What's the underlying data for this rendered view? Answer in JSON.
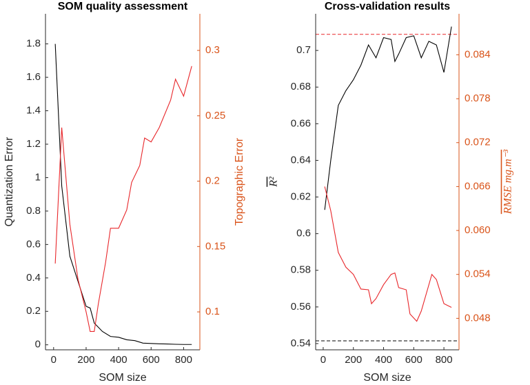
{
  "chart_data": [
    {
      "type": "line",
      "title": "SOM quality assessment",
      "xlabel": "SOM size",
      "ylabel": "Quantization Error",
      "y2label": "Topographic Error",
      "xlim": [
        -50,
        900
      ],
      "xticks": [
        0,
        200,
        400,
        600,
        800
      ],
      "ylim": [
        -0.03,
        1.98
      ],
      "yticks": [
        0,
        0.2,
        0.4,
        0.6,
        0.8,
        1,
        1.2,
        1.4,
        1.6,
        1.8
      ],
      "y2lim": [
        0.071,
        0.328
      ],
      "y2ticks": [
        0.1,
        0.15,
        0.2,
        0.25,
        0.3
      ],
      "axis_color": "#262626",
      "axis2_color": "#d95319",
      "series": [
        {
          "color": "#000000",
          "x": [
            10,
            50,
            100,
            150,
            200,
            225,
            250,
            300,
            350,
            400,
            450,
            500,
            550,
            600,
            650,
            700,
            750,
            800,
            850
          ],
          "values": [
            1.8,
            0.95,
            0.53,
            0.38,
            0.23,
            0.22,
            0.13,
            0.08,
            0.05,
            0.045,
            0.03,
            0.025,
            0.01,
            0.008,
            0.006,
            0.005,
            0.003,
            0.002,
            0.002
          ]
        },
        {
          "color": "#e8262a",
          "axis": "y2",
          "x": [
            10,
            50,
            100,
            150,
            200,
            225,
            250,
            275,
            320,
            350,
            400,
            450,
            480,
            530,
            560,
            600,
            650,
            720,
            750,
            800,
            850
          ],
          "values": [
            0.137,
            0.241,
            0.167,
            0.125,
            0.1,
            0.085,
            0.085,
            0.106,
            0.138,
            0.164,
            0.164,
            0.178,
            0.199,
            0.212,
            0.233,
            0.23,
            0.241,
            0.262,
            0.278,
            0.265,
            0.288
          ]
        }
      ],
      "hlines": []
    },
    {
      "type": "line",
      "title": "Cross-validation results",
      "xlabel": "SOM size",
      "ylabel": "R²",
      "y2label": "RMSE mg.m⁻³",
      "xlim": [
        -50,
        900
      ],
      "xticks": [
        0,
        200,
        400,
        600,
        800
      ],
      "ylim": [
        0.5366,
        0.72
      ],
      "yticks": [
        0.54,
        0.56,
        0.58,
        0.6,
        0.62,
        0.64,
        0.66,
        0.68,
        0.7
      ],
      "y2lim": [
        0.0437,
        0.0896
      ],
      "y2ticks": [
        0.048,
        0.054,
        {
          "value": 0.06,
          "label": "0.060"
        },
        0.066,
        0.072,
        0.078,
        0.084
      ],
      "axis_color": "#262626",
      "axis2_color": "#d95319",
      "series": [
        {
          "color": "#000000",
          "x": [
            10,
            50,
            100,
            150,
            200,
            250,
            300,
            350,
            400,
            450,
            475,
            500,
            550,
            600,
            650,
            700,
            750,
            800,
            850
          ],
          "values": [
            0.613,
            0.64,
            0.67,
            0.678,
            0.684,
            0.692,
            0.703,
            0.696,
            0.707,
            0.706,
            0.694,
            0.698,
            0.707,
            0.708,
            0.696,
            0.705,
            0.703,
            0.688,
            0.713
          ]
        },
        {
          "color": "#e8262a",
          "axis": "y2",
          "x": [
            10,
            50,
            100,
            150,
            200,
            250,
            300,
            320,
            350,
            400,
            450,
            475,
            500,
            550,
            575,
            620,
            650,
            720,
            750,
            800,
            850
          ],
          "values": [
            0.066,
            0.0627,
            0.057,
            0.055,
            0.054,
            0.052,
            0.0519,
            0.05,
            0.0507,
            0.0526,
            0.054,
            0.0542,
            0.0522,
            0.0519,
            0.0486,
            0.0476,
            0.049,
            0.054,
            0.0533,
            0.05,
            0.0495
          ]
        }
      ],
      "hlines": [
        {
          "value": 0.5415,
          "color": "#000000"
        },
        {
          "value": 0.0868,
          "color": "#e8262a",
          "axis": "y2"
        }
      ]
    }
  ]
}
